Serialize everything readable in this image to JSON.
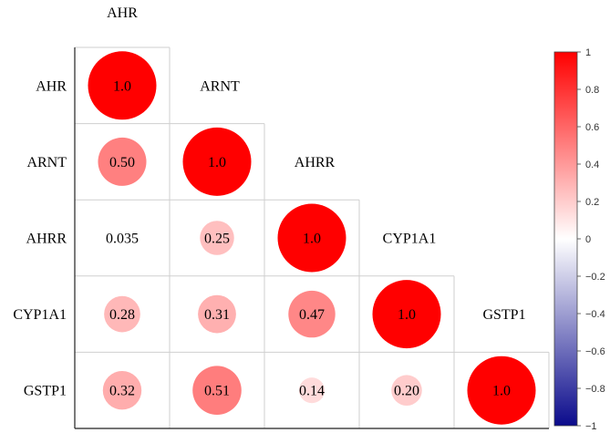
{
  "chart_data": {
    "type": "heatmap",
    "variables": [
      "AHR",
      "ARNT",
      "AHRR",
      "CYP1A1",
      "GSTP1"
    ],
    "matrix": [
      [
        "1.0",
        null,
        null,
        null,
        null
      ],
      [
        "0.50",
        "1.0",
        null,
        null,
        null
      ],
      [
        "0.035",
        "0.25",
        "1.0",
        null,
        null
      ],
      [
        "0.28",
        "0.31",
        "0.47",
        "1.0",
        null
      ],
      [
        "0.32",
        "0.51",
        "0.14",
        "0.20",
        "1.0"
      ]
    ],
    "values": [
      [
        1.0,
        null,
        null,
        null,
        null
      ],
      [
        0.5,
        1.0,
        null,
        null,
        null
      ],
      [
        0.035,
        0.25,
        1.0,
        null,
        null
      ],
      [
        0.28,
        0.31,
        0.47,
        1.0,
        null
      ],
      [
        0.32,
        0.51,
        0.14,
        0.2,
        1.0
      ]
    ],
    "layout": "lower-triangle",
    "marker": "circle sized and colored by value; small values shown as text only",
    "colorbar": {
      "range": [
        -1,
        1
      ],
      "ticks": [
        "1",
        "0.8",
        "0.6",
        "0.4",
        "0.2",
        "0",
        "−0.2",
        "−0.4",
        "−0.6",
        "−0.8",
        "−1"
      ],
      "colors": {
        "low": "#0b0b8c",
        "mid": "#ffffff",
        "high": "#ff0000"
      },
      "placement": "right"
    }
  }
}
